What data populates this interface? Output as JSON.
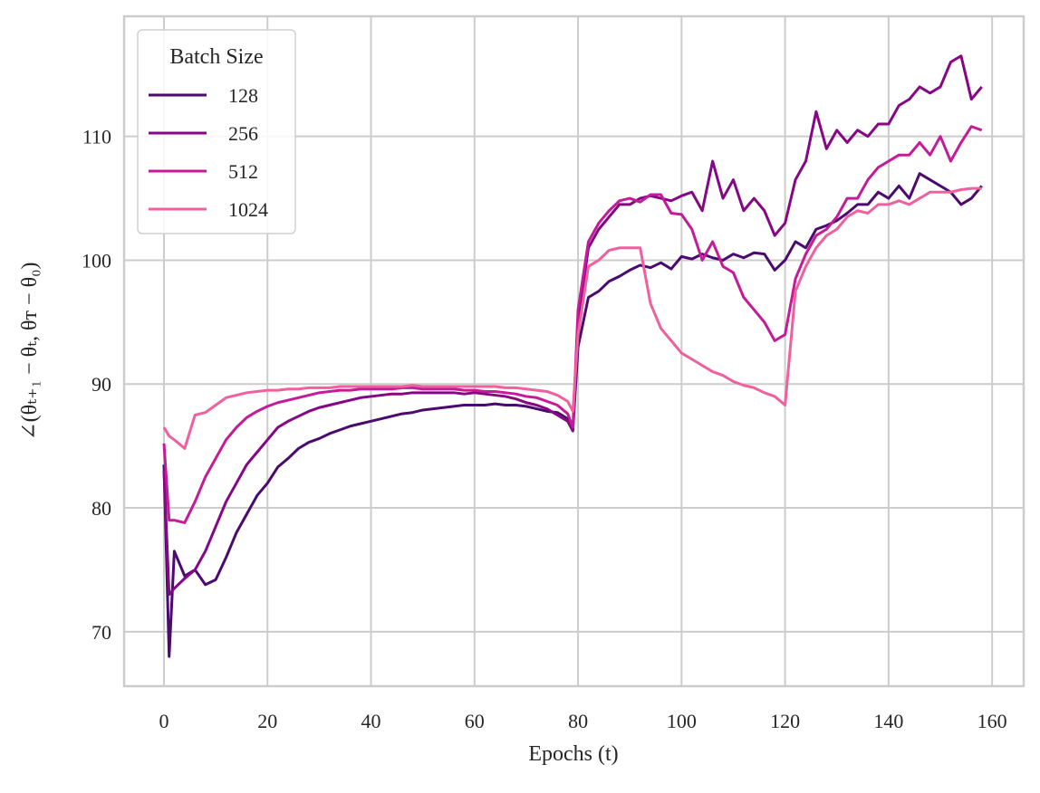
{
  "chart_data": {
    "type": "line",
    "xlabel": "Epochs (t)",
    "ylabel": "∠(θₜ₊₁ − θₜ, θᴛ − θ₀)",
    "legend_title": "Batch Size",
    "legend": "upper left",
    "grid": true,
    "xlim": [
      -7.7,
      166.1
    ],
    "ylim": [
      65.6,
      119.7
    ],
    "xticks": [
      0,
      20,
      40,
      60,
      80,
      100,
      120,
      140,
      160
    ],
    "yticks": [
      70,
      80,
      90,
      100,
      110
    ],
    "x": [
      0,
      1,
      2,
      4,
      6,
      8,
      10,
      12,
      14,
      16,
      18,
      20,
      22,
      24,
      26,
      28,
      30,
      32,
      34,
      36,
      38,
      40,
      42,
      44,
      46,
      48,
      50,
      52,
      54,
      56,
      58,
      60,
      62,
      64,
      66,
      68,
      70,
      72,
      74,
      76,
      78,
      79,
      80,
      82,
      84,
      86,
      88,
      90,
      92,
      94,
      96,
      98,
      100,
      102,
      104,
      106,
      108,
      110,
      112,
      114,
      116,
      118,
      120,
      122,
      124,
      126,
      128,
      130,
      132,
      134,
      136,
      138,
      140,
      142,
      144,
      146,
      148,
      150,
      152,
      154,
      156,
      158
    ],
    "series": [
      {
        "name": "128",
        "color": "#4a0a6e",
        "values": [
          83.5,
          68,
          76.5,
          74.5,
          75,
          73.8,
          74.2,
          76,
          78,
          79.5,
          81,
          82,
          83.3,
          84,
          84.8,
          85.3,
          85.6,
          86,
          86.3,
          86.6,
          86.8,
          87,
          87.2,
          87.4,
          87.6,
          87.7,
          87.9,
          88,
          88.1,
          88.2,
          88.3,
          88.3,
          88.3,
          88.4,
          88.3,
          88.3,
          88.2,
          88,
          87.8,
          87.7,
          87.2,
          86.3,
          93,
          97,
          97.5,
          98.3,
          98.7,
          99.2,
          99.6,
          99.4,
          99.8,
          99.3,
          100.3,
          100.1,
          100.5,
          100.2,
          100,
          100.5,
          100.2,
          100.6,
          100.5,
          99.2,
          100,
          101.5,
          101,
          102.5,
          102.8,
          103.2,
          103.8,
          104.5,
          104.5,
          105.5,
          105,
          106,
          105,
          107,
          106.5,
          106,
          105.5,
          104.5,
          105,
          106
        ]
      },
      {
        "name": "256",
        "color": "#860786",
        "values": [
          83,
          73,
          73.5,
          74.3,
          75,
          76.5,
          78.5,
          80.5,
          82,
          83.5,
          84.5,
          85.5,
          86.5,
          87,
          87.4,
          87.8,
          88.1,
          88.3,
          88.5,
          88.7,
          88.9,
          89,
          89.1,
          89.2,
          89.2,
          89.3,
          89.3,
          89.3,
          89.3,
          89.3,
          89.2,
          89.3,
          89.2,
          89.1,
          89,
          88.8,
          88.5,
          88.3,
          88,
          87.5,
          87,
          86.2,
          95,
          101,
          102.5,
          103.5,
          104.5,
          104.5,
          105,
          105.2,
          105,
          104.8,
          105.2,
          105.5,
          104,
          108,
          105,
          106.5,
          104,
          105,
          104,
          102,
          103,
          106.5,
          108,
          112,
          109,
          110.5,
          109.5,
          110.5,
          110,
          111,
          111,
          112.5,
          113,
          114,
          113.5,
          114,
          116,
          116.5,
          113,
          114
        ]
      },
      {
        "name": "512",
        "color": "#c51b98",
        "values": [
          85.2,
          79,
          79,
          78.8,
          80.5,
          82.5,
          84,
          85.5,
          86.5,
          87.3,
          87.8,
          88.2,
          88.5,
          88.7,
          88.9,
          89.1,
          89.3,
          89.4,
          89.5,
          89.5,
          89.6,
          89.6,
          89.6,
          89.6,
          89.7,
          89.7,
          89.6,
          89.6,
          89.6,
          89.6,
          89.5,
          89.5,
          89.4,
          89.4,
          89.3,
          89.2,
          89,
          88.9,
          88.6,
          88.3,
          87.6,
          86.5,
          96,
          101.5,
          103,
          104,
          104.8,
          105,
          104.7,
          105.3,
          105.3,
          103.8,
          103.7,
          102.5,
          100,
          101.5,
          99.5,
          99,
          97,
          96,
          95,
          93.5,
          94,
          98.5,
          100.5,
          102,
          102.5,
          103.5,
          105,
          105,
          106.5,
          107.5,
          108,
          108.5,
          108.5,
          109.5,
          108.5,
          110,
          108,
          109.5,
          110.8,
          110.5
        ]
      },
      {
        "name": "1024",
        "color": "#f0609e",
        "values": [
          86.5,
          85.8,
          85.5,
          84.8,
          87.5,
          87.7,
          88.3,
          88.9,
          89.1,
          89.3,
          89.4,
          89.5,
          89.5,
          89.6,
          89.6,
          89.7,
          89.7,
          89.7,
          89.8,
          89.8,
          89.8,
          89.8,
          89.8,
          89.8,
          89.8,
          89.9,
          89.8,
          89.8,
          89.8,
          89.8,
          89.8,
          89.8,
          89.8,
          89.8,
          89.7,
          89.7,
          89.6,
          89.5,
          89.4,
          89.1,
          88.6,
          87.8,
          94,
          99.5,
          100,
          100.8,
          101,
          101,
          101,
          96.5,
          94.5,
          93.5,
          92.5,
          92,
          91.5,
          91,
          90.7,
          90.2,
          89.9,
          89.7,
          89.3,
          89,
          88.3,
          97.5,
          99.5,
          101,
          102,
          102.5,
          103.5,
          104,
          103.8,
          104.5,
          104.5,
          104.8,
          104.5,
          105,
          105.5,
          105.5,
          105.5,
          105.7,
          105.8,
          105.8
        ]
      }
    ]
  }
}
